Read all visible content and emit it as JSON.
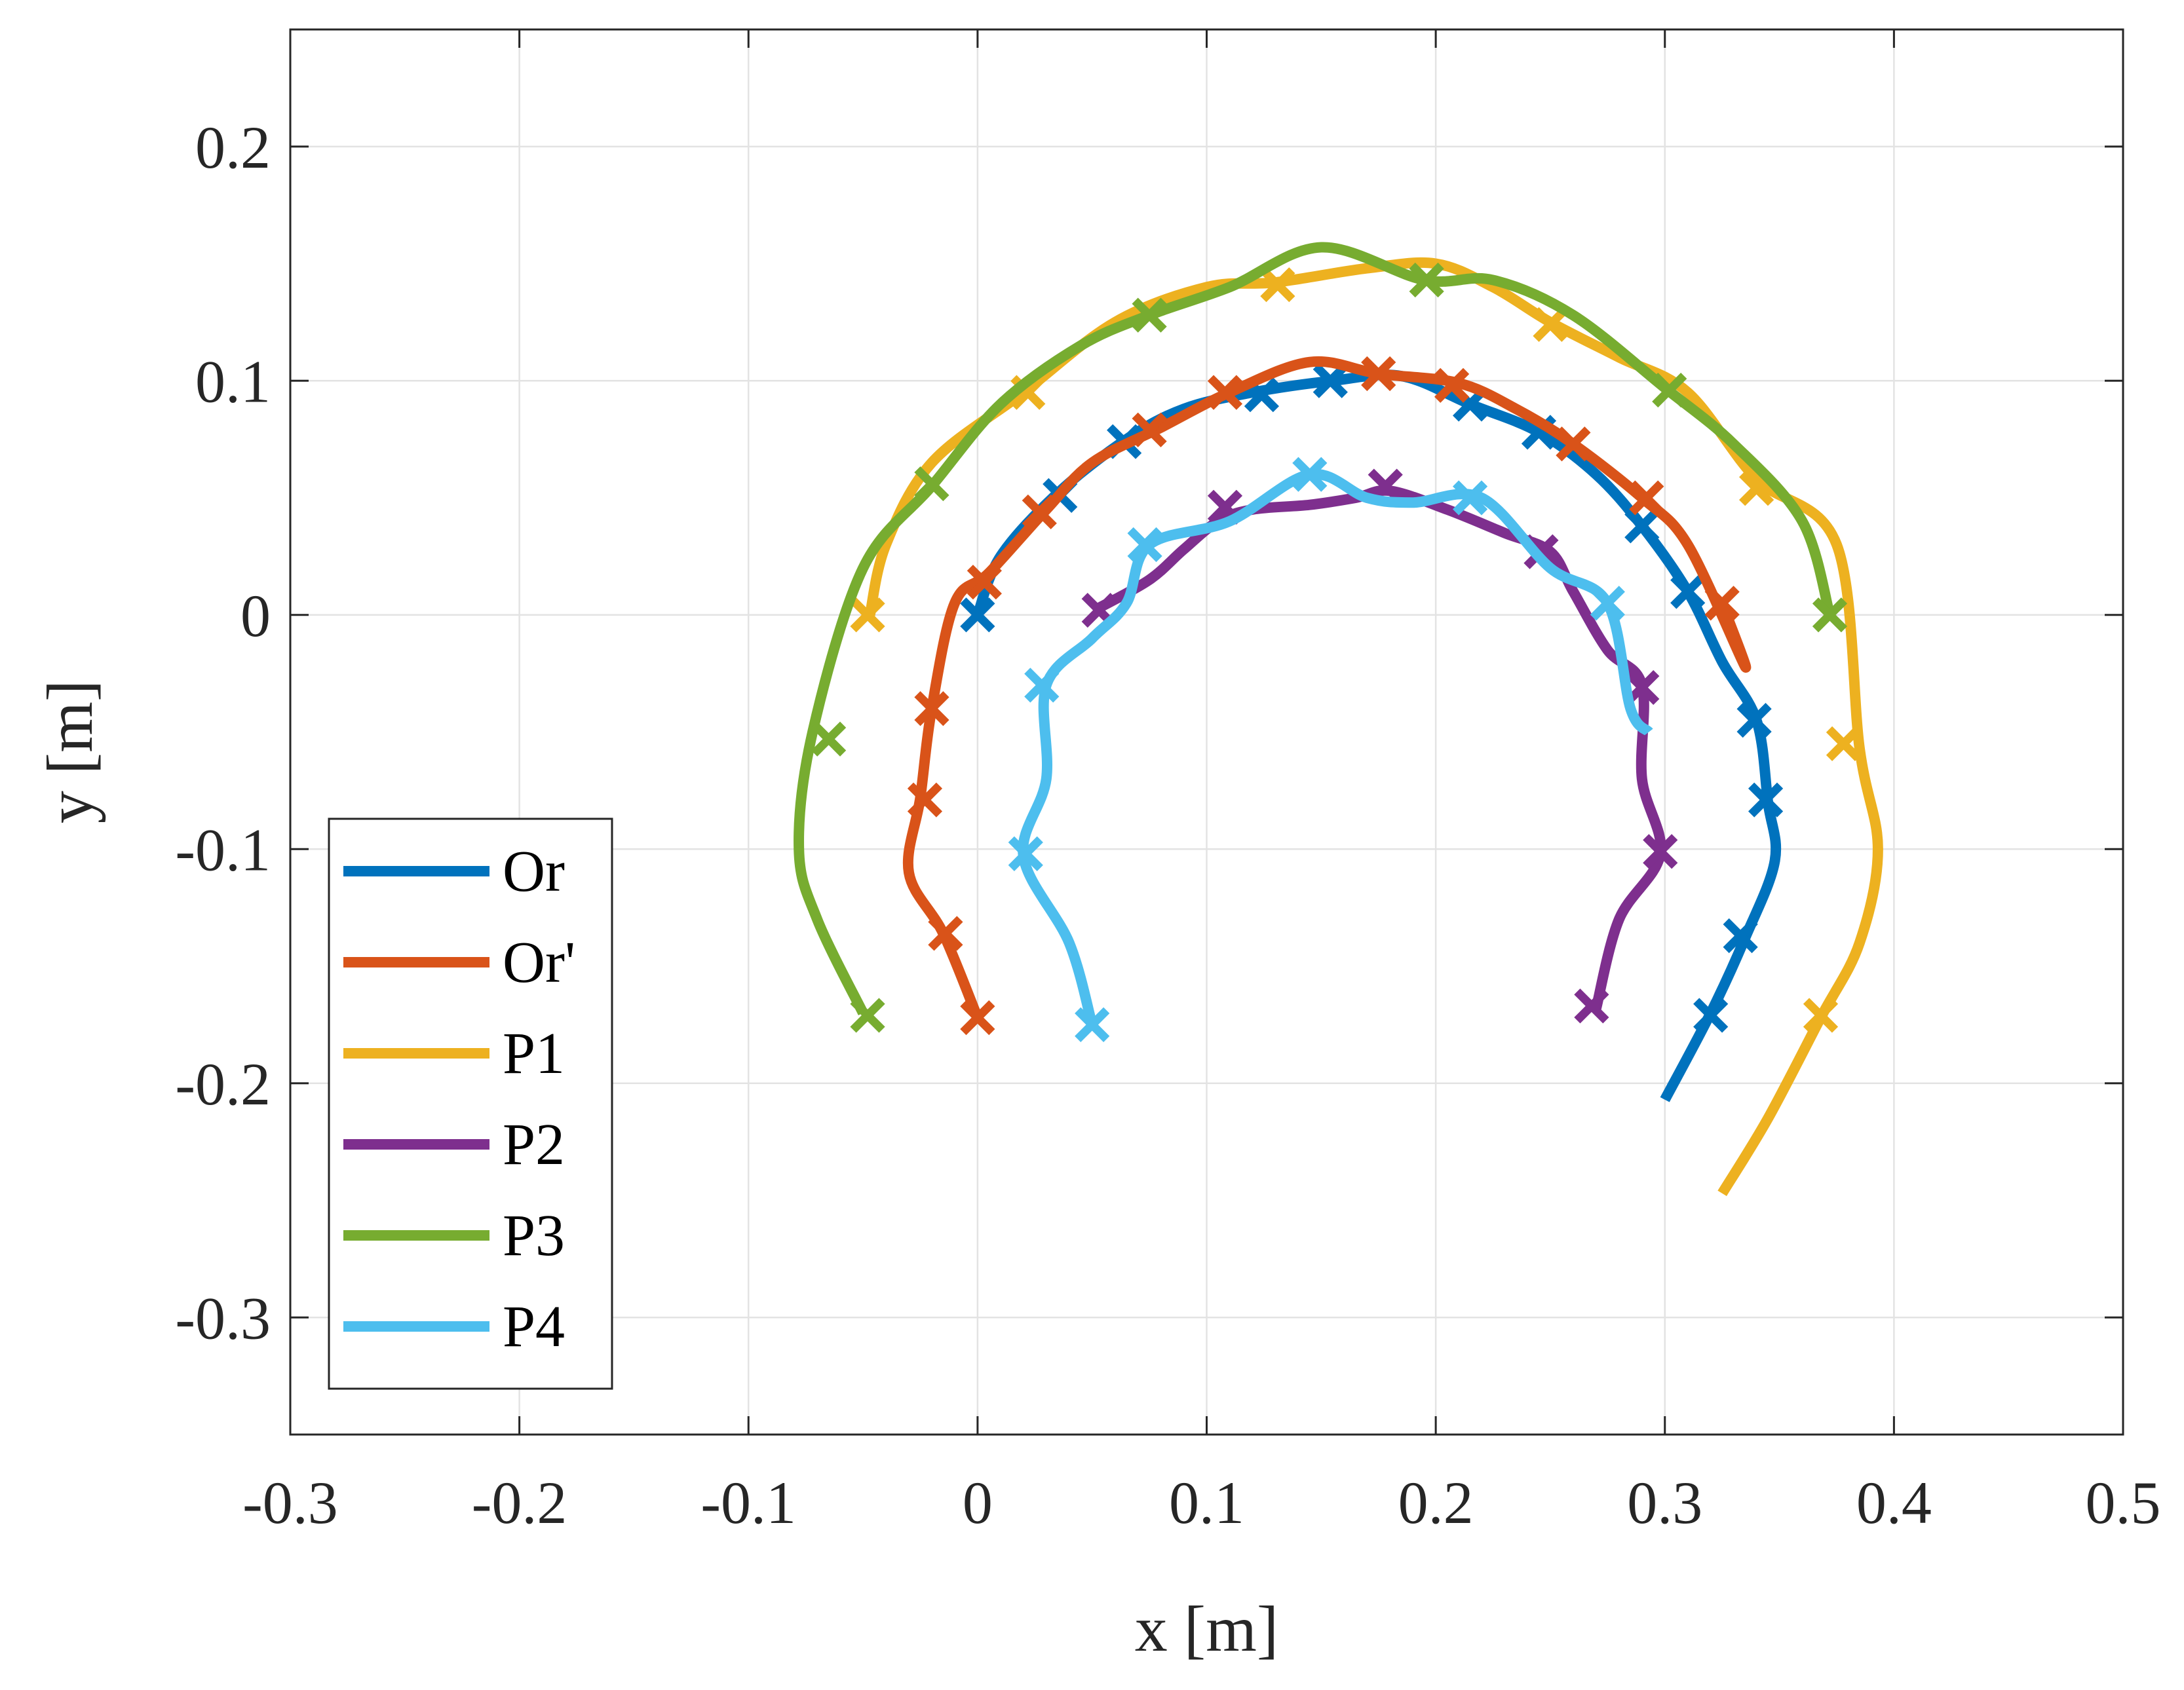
{
  "chart_data": {
    "type": "line",
    "title": "",
    "xlabel": "x [m]",
    "ylabel": "y [m]",
    "xlim": [
      -0.3,
      0.5
    ],
    "ylim": [
      -0.35,
      0.25
    ],
    "xticks": [
      -0.3,
      -0.2,
      -0.1,
      0,
      0.1,
      0.2,
      0.3,
      0.4,
      0.5
    ],
    "xtick_labels": [
      "-0.3",
      "-0.2",
      "-0.1",
      "0",
      "0.1",
      "0.2",
      "0.3",
      "0.4",
      "0.5"
    ],
    "yticks": [
      -0.3,
      -0.2,
      -0.1,
      0,
      0.1,
      0.2
    ],
    "ytick_labels": [
      "-0.3",
      "-0.2",
      "-0.1",
      "0",
      "0.1",
      "0.2"
    ],
    "grid": true,
    "legend_position": "bottom-left",
    "series": [
      {
        "name": "Or",
        "color": "#0072BD",
        "line": [
          [
            0,
            0
          ],
          [
            0.01,
            0.025
          ],
          [
            0.035,
            0.052
          ],
          [
            0.065,
            0.075
          ],
          [
            0.09,
            0.088
          ],
          [
            0.12,
            0.095
          ],
          [
            0.155,
            0.1
          ],
          [
            0.185,
            0.102
          ],
          [
            0.215,
            0.09
          ],
          [
            0.245,
            0.078
          ],
          [
            0.27,
            0.06
          ],
          [
            0.29,
            0.038
          ],
          [
            0.31,
            0.01
          ],
          [
            0.325,
            -0.02
          ],
          [
            0.34,
            -0.045
          ],
          [
            0.345,
            -0.08
          ],
          [
            0.348,
            -0.105
          ],
          [
            0.335,
            -0.138
          ],
          [
            0.32,
            -0.17
          ],
          [
            0.3,
            -0.207
          ]
        ],
        "markers": [
          [
            0,
            0
          ],
          [
            0.036,
            0.051
          ],
          [
            0.064,
            0.074
          ],
          [
            0.124,
            0.094
          ],
          [
            0.154,
            0.1
          ],
          [
            0.215,
            0.09
          ],
          [
            0.245,
            0.078
          ],
          [
            0.29,
            0.038
          ],
          [
            0.31,
            0.01
          ],
          [
            0.339,
            -0.045
          ],
          [
            0.344,
            -0.079
          ],
          [
            0.333,
            -0.137
          ],
          [
            0.32,
            -0.171
          ]
        ]
      },
      {
        "name": "Or'",
        "color": "#D95319",
        "line": [
          [
            0.325,
            0.005
          ],
          [
            0.335,
            -0.022
          ],
          [
            0.31,
            0.03
          ],
          [
            0.29,
            0.05
          ],
          [
            0.26,
            0.073
          ],
          [
            0.235,
            0.088
          ],
          [
            0.21,
            0.099
          ],
          [
            0.175,
            0.103
          ],
          [
            0.145,
            0.108
          ],
          [
            0.11,
            0.095
          ],
          [
            0.08,
            0.08
          ],
          [
            0.05,
            0.065
          ],
          [
            0.03,
            0.045
          ],
          [
            0.005,
            0.018
          ],
          [
            -0.01,
            0.005
          ],
          [
            -0.02,
            -0.04
          ],
          [
            -0.025,
            -0.078
          ],
          [
            -0.03,
            -0.11
          ],
          [
            -0.015,
            -0.136
          ],
          [
            0,
            -0.172
          ]
        ],
        "markers": [
          [
            0.325,
            0.005
          ],
          [
            0.292,
            0.05
          ],
          [
            0.26,
            0.073
          ],
          [
            0.207,
            0.098
          ],
          [
            0.175,
            0.103
          ],
          [
            0.108,
            0.095
          ],
          [
            0.075,
            0.079
          ],
          [
            0.027,
            0.044
          ],
          [
            0.003,
            0.014
          ],
          [
            -0.02,
            -0.04
          ],
          [
            -0.023,
            -0.079
          ],
          [
            -0.014,
            -0.136
          ],
          [
            0,
            -0.172
          ]
        ]
      },
      {
        "name": "P1",
        "color": "#EDB120",
        "line": [
          [
            -0.047,
            0
          ],
          [
            -0.04,
            0.03
          ],
          [
            -0.02,
            0.065
          ],
          [
            0.02,
            0.095
          ],
          [
            0.06,
            0.125
          ],
          [
            0.1,
            0.14
          ],
          [
            0.13,
            0.142
          ],
          [
            0.17,
            0.148
          ],
          [
            0.2,
            0.15
          ],
          [
            0.225,
            0.14
          ],
          [
            0.25,
            0.125
          ],
          [
            0.28,
            0.11
          ],
          [
            0.31,
            0.095
          ],
          [
            0.34,
            0.058
          ],
          [
            0.375,
            0.03
          ],
          [
            0.385,
            -0.057
          ],
          [
            0.393,
            -0.1
          ],
          [
            0.385,
            -0.14
          ],
          [
            0.368,
            -0.172
          ],
          [
            0.345,
            -0.215
          ],
          [
            0.325,
            -0.247
          ]
        ],
        "markers": [
          [
            -0.048,
            0
          ],
          [
            0.022,
            0.095
          ],
          [
            0.131,
            0.141
          ],
          [
            0.25,
            0.124
          ],
          [
            0.34,
            0.054
          ],
          [
            0.378,
            -0.055
          ],
          [
            0.368,
            -0.171
          ]
        ]
      },
      {
        "name": "P2",
        "color": "#7E2F8E",
        "line": [
          [
            0.053,
            0.003
          ],
          [
            0.075,
            0.015
          ],
          [
            0.09,
            0.028
          ],
          [
            0.105,
            0.04
          ],
          [
            0.12,
            0.045
          ],
          [
            0.145,
            0.047
          ],
          [
            0.165,
            0.05
          ],
          [
            0.18,
            0.053
          ],
          [
            0.205,
            0.045
          ],
          [
            0.23,
            0.035
          ],
          [
            0.25,
            0.027
          ],
          [
            0.26,
            0.01
          ],
          [
            0.275,
            -0.015
          ],
          [
            0.29,
            -0.03
          ],
          [
            0.29,
            -0.07
          ],
          [
            0.298,
            -0.102
          ],
          [
            0.28,
            -0.13
          ],
          [
            0.27,
            -0.168
          ]
        ],
        "markers": [
          [
            0.053,
            0.002
          ],
          [
            0.108,
            0.046
          ],
          [
            0.178,
            0.055
          ],
          [
            0.246,
            0.027
          ],
          [
            0.29,
            -0.031
          ],
          [
            0.298,
            -0.101
          ],
          [
            0.268,
            -0.167
          ]
        ]
      },
      {
        "name": "P3",
        "color": "#77AC30",
        "line": [
          [
            -0.05,
            -0.17
          ],
          [
            -0.07,
            -0.13
          ],
          [
            -0.078,
            -0.1
          ],
          [
            -0.072,
            -0.05
          ],
          [
            -0.05,
            0.02
          ],
          [
            -0.02,
            0.055
          ],
          [
            0.01,
            0.09
          ],
          [
            0.045,
            0.115
          ],
          [
            0.075,
            0.128
          ],
          [
            0.11,
            0.14
          ],
          [
            0.15,
            0.157
          ],
          [
            0.195,
            0.143
          ],
          [
            0.225,
            0.143
          ],
          [
            0.26,
            0.128
          ],
          [
            0.3,
            0.097
          ],
          [
            0.33,
            0.073
          ],
          [
            0.36,
            0.04
          ],
          [
            0.372,
            0
          ]
        ],
        "markers": [
          [
            -0.048,
            -0.171
          ],
          [
            -0.065,
            -0.053
          ],
          [
            -0.02,
            0.056
          ],
          [
            0.075,
            0.128
          ],
          [
            0.196,
            0.143
          ],
          [
            0.302,
            0.096
          ],
          [
            0.372,
            0
          ]
        ]
      },
      {
        "name": "P4",
        "color": "#4DBEEE",
        "line": [
          [
            0.05,
            -0.175
          ],
          [
            0.04,
            -0.14
          ],
          [
            0.02,
            -0.103
          ],
          [
            0.03,
            -0.07
          ],
          [
            0.03,
            -0.03
          ],
          [
            0.05,
            -0.01
          ],
          [
            0.065,
            0.005
          ],
          [
            0.075,
            0.03
          ],
          [
            0.11,
            0.04
          ],
          [
            0.145,
            0.06
          ],
          [
            0.17,
            0.05
          ],
          [
            0.19,
            0.048
          ],
          [
            0.22,
            0.05
          ],
          [
            0.25,
            0.02
          ],
          [
            0.275,
            0.005
          ],
          [
            0.285,
            -0.04
          ],
          [
            0.293,
            -0.05
          ]
        ],
        "markers": [
          [
            0.05,
            -0.175
          ],
          [
            0.021,
            -0.102
          ],
          [
            0.028,
            -0.03
          ],
          [
            0.073,
            0.03
          ],
          [
            0.145,
            0.06
          ],
          [
            0.215,
            0.05
          ],
          [
            0.275,
            0.005
          ]
        ]
      }
    ]
  }
}
